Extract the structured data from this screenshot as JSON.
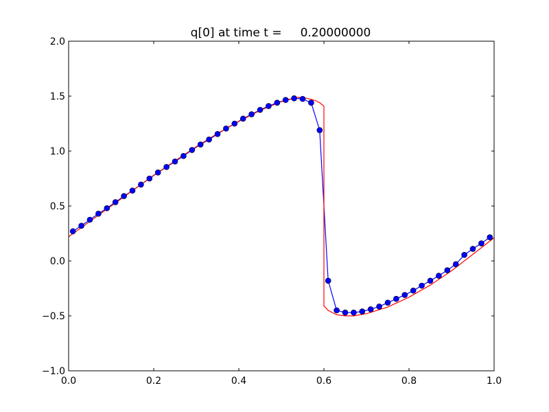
{
  "chart_data": {
    "type": "line",
    "title": "q[0] at time t =     0.20000000",
    "xlabel": "",
    "ylabel": "",
    "xlim": [
      0.0,
      1.0
    ],
    "ylim": [
      -1.0,
      2.0
    ],
    "grid": false,
    "x_ticks": [
      0.0,
      0.2,
      0.4,
      0.6,
      0.8,
      1.0
    ],
    "x_tick_labels": [
      "0.0",
      "0.2",
      "0.4",
      "0.6",
      "0.8",
      "1.0"
    ],
    "y_ticks": [
      -1.0,
      -0.5,
      0.0,
      0.5,
      1.0,
      1.5,
      2.0
    ],
    "y_tick_labels": [
      "−1.0",
      "−0.5",
      "0.0",
      "0.5",
      "1.0",
      "1.5",
      "2.0"
    ],
    "series": [
      {
        "color": "#0000ff",
        "style": "line-with-markers",
        "x": [
          0.01,
          0.03,
          0.05,
          0.07,
          0.09,
          0.11,
          0.13,
          0.15,
          0.17,
          0.19,
          0.21,
          0.23,
          0.25,
          0.27,
          0.29,
          0.31,
          0.33,
          0.35,
          0.37,
          0.39,
          0.41,
          0.43,
          0.45,
          0.47,
          0.49,
          0.51,
          0.53,
          0.55,
          0.57,
          0.59,
          0.61,
          0.63,
          0.65,
          0.67,
          0.69,
          0.71,
          0.73,
          0.75,
          0.77,
          0.79,
          0.81,
          0.83,
          0.85,
          0.87,
          0.89,
          0.91,
          0.93,
          0.95,
          0.97,
          0.99
        ],
        "y": [
          0.27,
          0.32,
          0.375,
          0.43,
          0.48,
          0.535,
          0.59,
          0.64,
          0.695,
          0.75,
          0.805,
          0.855,
          0.905,
          0.955,
          1.01,
          1.06,
          1.105,
          1.155,
          1.205,
          1.25,
          1.295,
          1.335,
          1.375,
          1.41,
          1.44,
          1.465,
          1.48,
          1.475,
          1.44,
          1.19,
          -0.18,
          -0.45,
          -0.47,
          -0.47,
          -0.46,
          -0.44,
          -0.415,
          -0.38,
          -0.345,
          -0.31,
          -0.27,
          -0.225,
          -0.18,
          -0.135,
          -0.085,
          -0.03,
          0.055,
          0.11,
          0.16,
          0.215
        ]
      },
      {
        "color": "#ff0000",
        "style": "line",
        "x": [
          0.0,
          0.05,
          0.1,
          0.15,
          0.2,
          0.25,
          0.3,
          0.35,
          0.4,
          0.45,
          0.5,
          0.52,
          0.54,
          0.56,
          0.58,
          0.59,
          0.6,
          0.6,
          0.61,
          0.63,
          0.65,
          0.67,
          0.7,
          0.75,
          0.8,
          0.85,
          0.9,
          0.95,
          1.0
        ],
        "y": [
          0.22,
          0.36,
          0.5,
          0.64,
          0.78,
          0.91,
          1.04,
          1.16,
          1.27,
          1.37,
          1.45,
          1.47,
          1.49,
          1.48,
          1.46,
          1.44,
          1.41,
          -0.41,
          -0.45,
          -0.49,
          -0.5,
          -0.5,
          -0.48,
          -0.42,
          -0.33,
          -0.22,
          -0.09,
          0.06,
          0.21
        ]
      }
    ]
  }
}
